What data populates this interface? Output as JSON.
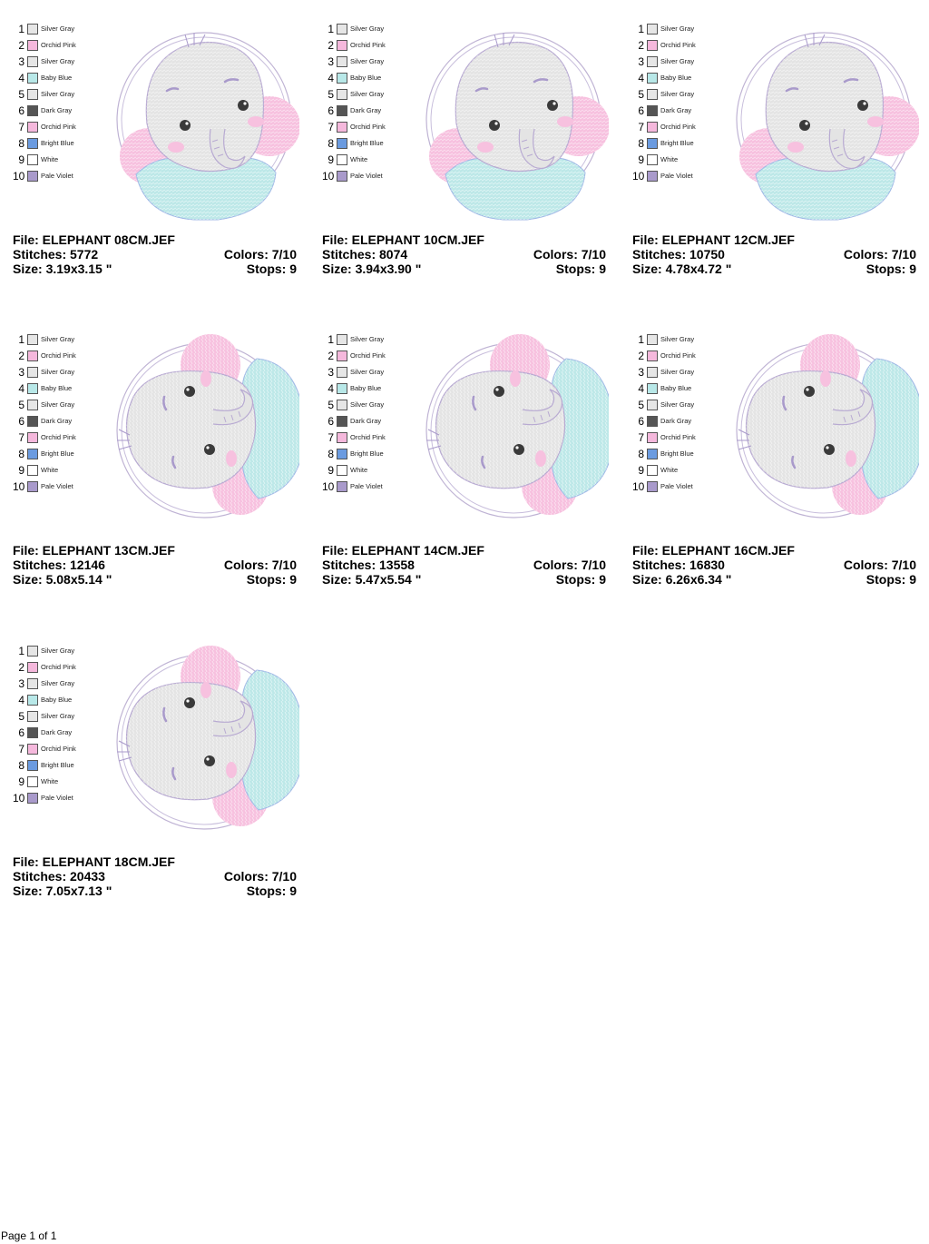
{
  "palette": [
    {
      "num": "1",
      "name": "Silver Gray",
      "color": "#e6e6e6"
    },
    {
      "num": "2",
      "name": "Orchid Pink",
      "color": "#f5b8dc"
    },
    {
      "num": "3",
      "name": "Silver Gray",
      "color": "#e6e6e6"
    },
    {
      "num": "4",
      "name": "Baby Blue",
      "color": "#b8e8e8"
    },
    {
      "num": "5",
      "name": "Silver Gray",
      "color": "#e6e6e6"
    },
    {
      "num": "6",
      "name": "Dark Gray",
      "color": "#555555"
    },
    {
      "num": "7",
      "name": "Orchid Pink",
      "color": "#f5b8dc"
    },
    {
      "num": "8",
      "name": "Bright Blue",
      "color": "#6b9be0"
    },
    {
      "num": "9",
      "name": "White",
      "color": "#ffffff"
    },
    {
      "num": "10",
      "name": "Pale Violet",
      "color": "#a99acb"
    }
  ],
  "designs": [
    {
      "file": "File: ELEPHANT 08CM.JEF",
      "stitches": "Stitches: 5772",
      "colors": "Colors: 7/10",
      "size": "Size: 3.19x3.15 \"",
      "stops": "Stops: 9",
      "pose": "front"
    },
    {
      "file": "File: ELEPHANT 10CM.JEF",
      "stitches": "Stitches: 8074",
      "colors": "Colors: 7/10",
      "size": "Size: 3.94x3.90 \"",
      "stops": "Stops: 9",
      "pose": "front"
    },
    {
      "file": "File: ELEPHANT 12CM.JEF",
      "stitches": "Stitches: 10750",
      "colors": "Colors: 7/10",
      "size": "Size: 4.78x4.72 \"",
      "stops": "Stops: 9",
      "pose": "front"
    },
    {
      "file": "File: ELEPHANT 13CM.JEF",
      "stitches": "Stitches: 12146",
      "colors": "Colors: 7/10",
      "size": "Size: 5.08x5.14 \"",
      "stops": "Stops: 9",
      "pose": "rotated"
    },
    {
      "file": "File: ELEPHANT 14CM.JEF",
      "stitches": "Stitches: 13558",
      "colors": "Colors: 7/10",
      "size": "Size: 5.47x5.54 \"",
      "stops": "Stops: 9",
      "pose": "rotated"
    },
    {
      "file": "File: ELEPHANT 16CM.JEF",
      "stitches": "Stitches: 16830",
      "colors": "Colors: 7/10",
      "size": "Size: 6.26x6.34 \"",
      "stops": "Stops: 9",
      "pose": "rotated"
    },
    {
      "file": "File: ELEPHANT 18CM.JEF",
      "stitches": "Stitches: 20433",
      "colors": "Colors: 7/10",
      "size": "Size: 7.05x7.13 \"",
      "stops": "Stops: 9",
      "pose": "rotated"
    }
  ],
  "footer": {
    "page": "Page 1 of 1"
  }
}
